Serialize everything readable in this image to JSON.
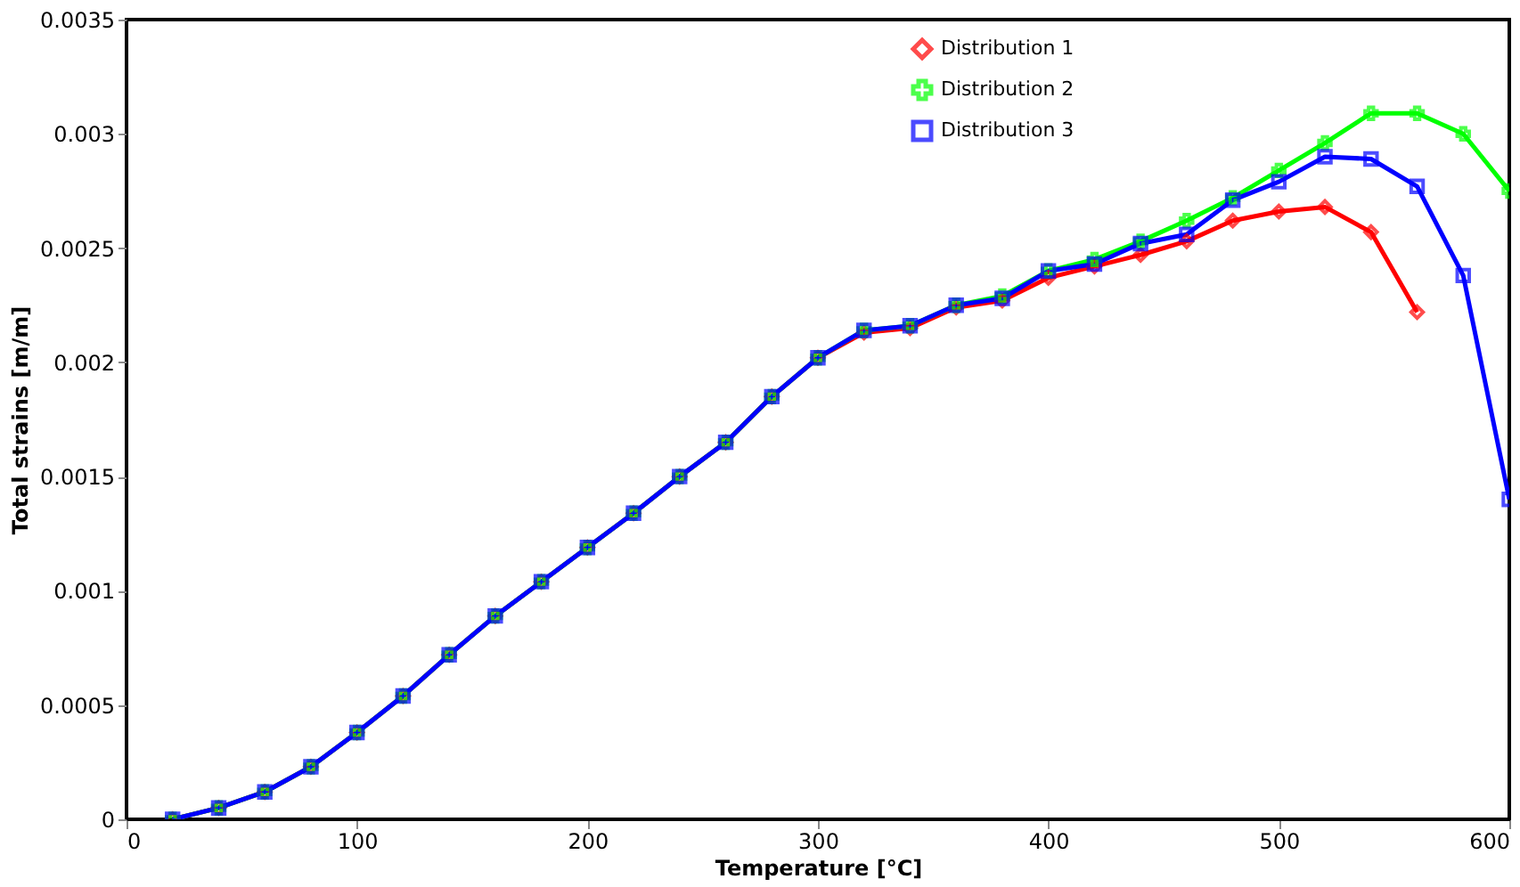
{
  "chart_data": {
    "type": "line",
    "xlabel": "Temperature [°C]",
    "ylabel": "Total strains [m/m]",
    "xlim": [
      0,
      600
    ],
    "xticks": [
      0,
      100,
      200,
      300,
      400,
      500,
      600
    ],
    "ylim": [
      0,
      0.0035
    ],
    "yticks": [
      0,
      0.0005,
      0.001,
      0.0015,
      0.002,
      0.0025,
      0.003,
      0.0035
    ],
    "grid": false,
    "legend": "top right",
    "line_style": "solid",
    "x": [
      20,
      40,
      60,
      80,
      100,
      120,
      140,
      160,
      180,
      200,
      220,
      240,
      260,
      280,
      300,
      320,
      340,
      360,
      380,
      400,
      420,
      440,
      460,
      480,
      500,
      520,
      540,
      560,
      580,
      600
    ],
    "series": [
      {
        "name": "Distribution 1",
        "color": "#ff0000",
        "marker": "diamond",
        "values": [
          0,
          5e-05,
          0.00012,
          0.00023,
          0.00038,
          0.00054,
          0.00072,
          0.00089,
          0.00104,
          0.00119,
          0.00134,
          0.0015,
          0.00165,
          0.00185,
          0.00202,
          0.00213,
          0.00215,
          0.00224,
          0.00227,
          0.00237,
          0.00242,
          0.00247,
          0.00253,
          0.00262,
          0.00266,
          0.00268,
          0.00257,
          0.00222,
          null,
          null
        ]
      },
      {
        "name": "Distribution 2",
        "color": "#00ff00",
        "marker": "cross",
        "values": [
          0,
          5e-05,
          0.00012,
          0.00023,
          0.00038,
          0.00054,
          0.00072,
          0.00089,
          0.00104,
          0.00119,
          0.00134,
          0.0015,
          0.00165,
          0.00185,
          0.00202,
          0.00214,
          0.00216,
          0.00225,
          0.00229,
          0.0024,
          0.00245,
          0.00253,
          0.00262,
          0.00272,
          0.00284,
          0.00296,
          0.00309,
          0.00309,
          0.003,
          0.00275
        ]
      },
      {
        "name": "Distribution 3",
        "color": "#0000ff",
        "marker": "square",
        "values": [
          0,
          5e-05,
          0.00012,
          0.00023,
          0.00038,
          0.00054,
          0.00072,
          0.00089,
          0.00104,
          0.00119,
          0.00134,
          0.0015,
          0.00165,
          0.00185,
          0.00202,
          0.00214,
          0.00216,
          0.00225,
          0.00228,
          0.0024,
          0.00243,
          0.00252,
          0.00256,
          0.00271,
          0.00279,
          0.0029,
          0.00289,
          0.00277,
          0.00238,
          0.0014
        ]
      }
    ]
  }
}
